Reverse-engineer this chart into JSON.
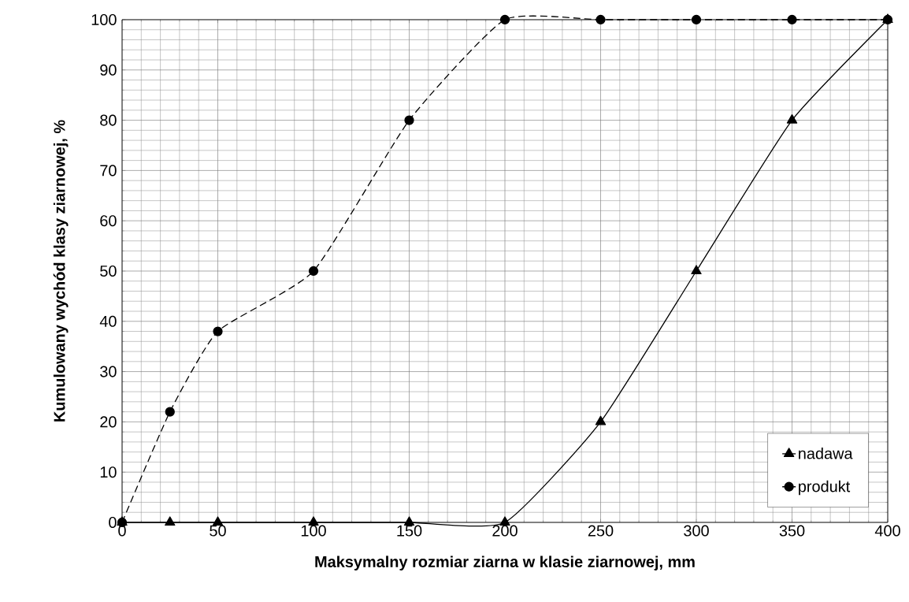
{
  "chart_data": {
    "type": "line",
    "xlabel": "Maksymalny rozmiar ziarna w klasie ziarnowej, mm",
    "ylabel": "Kumulowany wychód klasy ziarnowej, %",
    "x": [
      0,
      25,
      50,
      100,
      150,
      200,
      250,
      300,
      350,
      400
    ],
    "series": [
      {
        "name": "nadawa",
        "color": "#000000",
        "marker": "triangle",
        "line_style": "solid",
        "values": [
          0,
          0,
          0,
          0,
          0,
          0,
          20,
          50,
          80,
          100
        ]
      },
      {
        "name": "produkt",
        "color": "#000000",
        "marker": "circle",
        "line_style": "dashed",
        "values": [
          0,
          22,
          38,
          50,
          80,
          100,
          100,
          100,
          100,
          100
        ]
      }
    ],
    "xlim": [
      0,
      400
    ],
    "ylim": [
      0,
      100
    ],
    "xticks": [
      0,
      50,
      100,
      150,
      200,
      250,
      300,
      350,
      400
    ],
    "yticks": [
      0,
      10,
      20,
      30,
      40,
      50,
      60,
      70,
      80,
      90,
      100
    ],
    "grid": true,
    "legend": "bottom right"
  }
}
